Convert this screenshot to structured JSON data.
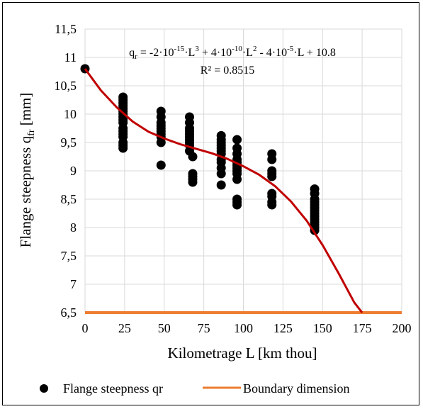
{
  "chart_data": {
    "type": "scatter",
    "title": "",
    "xlabel": "Kilometrage L [km thou]",
    "ylabel_main": "Flange steepness q",
    "ylabel_sub": "fr",
    "ylabel_unit": " [mm]",
    "xlim": [
      0,
      200
    ],
    "ylim": [
      6.5,
      11.5
    ],
    "x_ticks": [
      0,
      25,
      50,
      75,
      100,
      125,
      150,
      175,
      200
    ],
    "x_tick_labels": [
      "0",
      "25",
      "50",
      "75",
      "100",
      "125",
      "150",
      "175",
      "200"
    ],
    "y_ticks": [
      6.5,
      7,
      7.5,
      8,
      8.5,
      9,
      9.5,
      10,
      10.5,
      11,
      11.5
    ],
    "y_tick_labels": [
      "6,5",
      "7",
      "7,5",
      "8",
      "8,5",
      "9",
      "9,5",
      "10",
      "10,5",
      "11",
      "11,5"
    ],
    "grid": true,
    "legend_position": "bottom",
    "series": [
      {
        "name": "Flange steepness qr",
        "kind": "scatter",
        "color": "#000000",
        "points": [
          [
            0,
            10.8
          ],
          [
            24,
            10.3
          ],
          [
            24,
            10.25
          ],
          [
            24,
            10.2
          ],
          [
            24,
            10.15
          ],
          [
            24,
            10.1
          ],
          [
            24,
            10.05
          ],
          [
            24,
            10.0
          ],
          [
            24,
            9.95
          ],
          [
            24,
            9.9
          ],
          [
            24,
            9.85
          ],
          [
            24,
            9.75
          ],
          [
            24,
            9.7
          ],
          [
            24,
            9.65
          ],
          [
            24,
            9.6
          ],
          [
            24,
            9.5
          ],
          [
            24,
            9.45
          ],
          [
            24,
            9.4
          ],
          [
            48,
            10.05
          ],
          [
            48,
            9.95
          ],
          [
            48,
            9.85
          ],
          [
            48,
            9.8
          ],
          [
            48,
            9.75
          ],
          [
            48,
            9.7
          ],
          [
            48,
            9.65
          ],
          [
            48,
            9.6
          ],
          [
            48,
            9.5
          ],
          [
            48,
            9.1
          ],
          [
            66,
            9.95
          ],
          [
            66,
            9.85
          ],
          [
            66,
            9.75
          ],
          [
            66,
            9.7
          ],
          [
            66,
            9.65
          ],
          [
            66,
            9.6
          ],
          [
            66,
            9.55
          ],
          [
            66,
            9.5
          ],
          [
            66,
            9.45
          ],
          [
            66,
            9.35
          ],
          [
            68,
            9.25
          ],
          [
            68,
            8.95
          ],
          [
            68,
            8.9
          ],
          [
            68,
            8.85
          ],
          [
            68,
            8.8
          ],
          [
            86,
            9.62
          ],
          [
            86,
            9.55
          ],
          [
            86,
            9.5
          ],
          [
            86,
            9.45
          ],
          [
            86,
            9.4
          ],
          [
            86,
            9.35
          ],
          [
            86,
            9.3
          ],
          [
            86,
            9.2
          ],
          [
            86,
            9.15
          ],
          [
            86,
            9.05
          ],
          [
            86,
            8.95
          ],
          [
            86,
            8.75
          ],
          [
            96,
            9.55
          ],
          [
            96,
            9.4
          ],
          [
            96,
            9.3
          ],
          [
            96,
            9.2
          ],
          [
            96,
            9.15
          ],
          [
            96,
            9.1
          ],
          [
            96,
            9.05
          ],
          [
            96,
            9.0
          ],
          [
            96,
            8.95
          ],
          [
            96,
            8.85
          ],
          [
            96,
            8.5
          ],
          [
            96,
            8.45
          ],
          [
            96,
            8.4
          ],
          [
            118,
            9.3
          ],
          [
            118,
            9.2
          ],
          [
            118,
            9.0
          ],
          [
            118,
            8.95
          ],
          [
            118,
            8.9
          ],
          [
            118,
            8.6
          ],
          [
            118,
            8.55
          ],
          [
            118,
            8.45
          ],
          [
            118,
            8.4
          ],
          [
            145,
            8.68
          ],
          [
            145,
            8.6
          ],
          [
            145,
            8.5
          ],
          [
            145,
            8.45
          ],
          [
            145,
            8.4
          ],
          [
            145,
            8.35
          ],
          [
            145,
            8.3
          ],
          [
            145,
            8.25
          ],
          [
            145,
            8.2
          ],
          [
            145,
            8.15
          ],
          [
            145,
            8.1
          ],
          [
            145,
            8.05
          ],
          [
            145,
            8.0
          ],
          [
            145,
            7.95
          ]
        ]
      },
      {
        "name": "Polynomial trendline",
        "kind": "line",
        "color": "#c00000",
        "points": [
          [
            0,
            10.8
          ],
          [
            10,
            10.42
          ],
          [
            20,
            10.12
          ],
          [
            30,
            9.87
          ],
          [
            40,
            9.69
          ],
          [
            50,
            9.57
          ],
          [
            60,
            9.47
          ],
          [
            70,
            9.39
          ],
          [
            80,
            9.31
          ],
          [
            90,
            9.21
          ],
          [
            100,
            9.08
          ],
          [
            110,
            8.93
          ],
          [
            120,
            8.73
          ],
          [
            130,
            8.46
          ],
          [
            140,
            8.12
          ],
          [
            150,
            7.69
          ],
          [
            160,
            7.2
          ],
          [
            170,
            6.68
          ],
          [
            175,
            6.5
          ]
        ]
      },
      {
        "name": "Boundary dimension",
        "kind": "hline",
        "color": "#ed7d31",
        "y": 6.5
      }
    ],
    "equation_prefix": "q",
    "equation_sub": "r",
    "equation_body": " = -2·10",
    "equation_exp1": "-15",
    "equation_part2": "·L",
    "equation_exp2": "3",
    "equation_part3": " + 4·10",
    "equation_exp3": "-10",
    "equation_part4": "·L",
    "equation_exp4": "2",
    "equation_part5": " - 4·10",
    "equation_exp5": "-5",
    "equation_part6": "·L + 10.8",
    "r_squared": "R² = 0.8515",
    "legend": [
      {
        "label": "Flange steepness qr",
        "marker": "dot",
        "color": "#000000"
      },
      {
        "label": "Boundary dimension",
        "marker": "line",
        "color": "#ed7d31"
      }
    ]
  }
}
